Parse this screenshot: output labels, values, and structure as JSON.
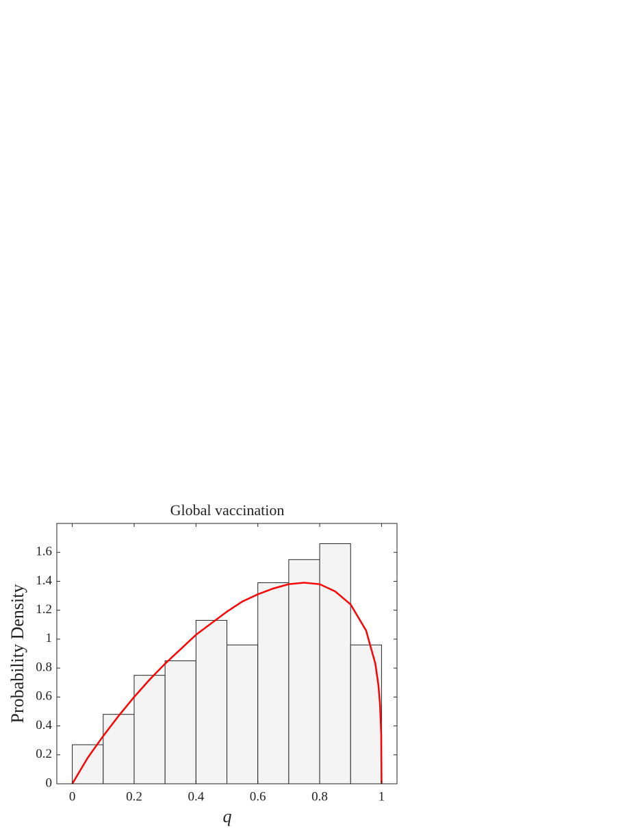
{
  "chart_data": {
    "type": "histogram",
    "title": "Global vaccination",
    "xlabel": "q",
    "ylabel": "Probability Density",
    "bins": [
      0,
      0.1,
      0.2,
      0.3,
      0.4,
      0.5,
      0.6,
      0.7,
      0.8,
      0.9,
      1
    ],
    "values": [
      0.27,
      0.48,
      0.75,
      0.85,
      1.13,
      0.96,
      1.39,
      1.55,
      1.66,
      0.96
    ],
    "color": "#f4f4f4",
    "edgecolor": "#222222",
    "curve": {
      "color": "#ff0000",
      "x": [
        0,
        0.05,
        0.1,
        0.15,
        0.2,
        0.25,
        0.3,
        0.35,
        0.4,
        0.45,
        0.5,
        0.55,
        0.6,
        0.65,
        0.7,
        0.75,
        0.8,
        0.85,
        0.9,
        0.95,
        0.98,
        0.99,
        0.995,
        0.999,
        1
      ],
      "y": [
        0,
        0.18,
        0.33,
        0.47,
        0.6,
        0.72,
        0.83,
        0.93,
        1.03,
        1.11,
        1.19,
        1.26,
        1.31,
        1.35,
        1.38,
        1.39,
        1.38,
        1.33,
        1.24,
        1.06,
        0.83,
        0.68,
        0.55,
        0.34,
        0
      ]
    },
    "xlim": [
      -0.05,
      1.05
    ],
    "ylim": [
      0,
      1.8
    ],
    "xticks": [
      0,
      0.2,
      0.4,
      0.6,
      0.8,
      1
    ],
    "yticks": [
      0,
      0.2,
      0.4,
      0.6,
      0.8,
      1,
      1.2,
      1.4,
      1.6
    ]
  }
}
